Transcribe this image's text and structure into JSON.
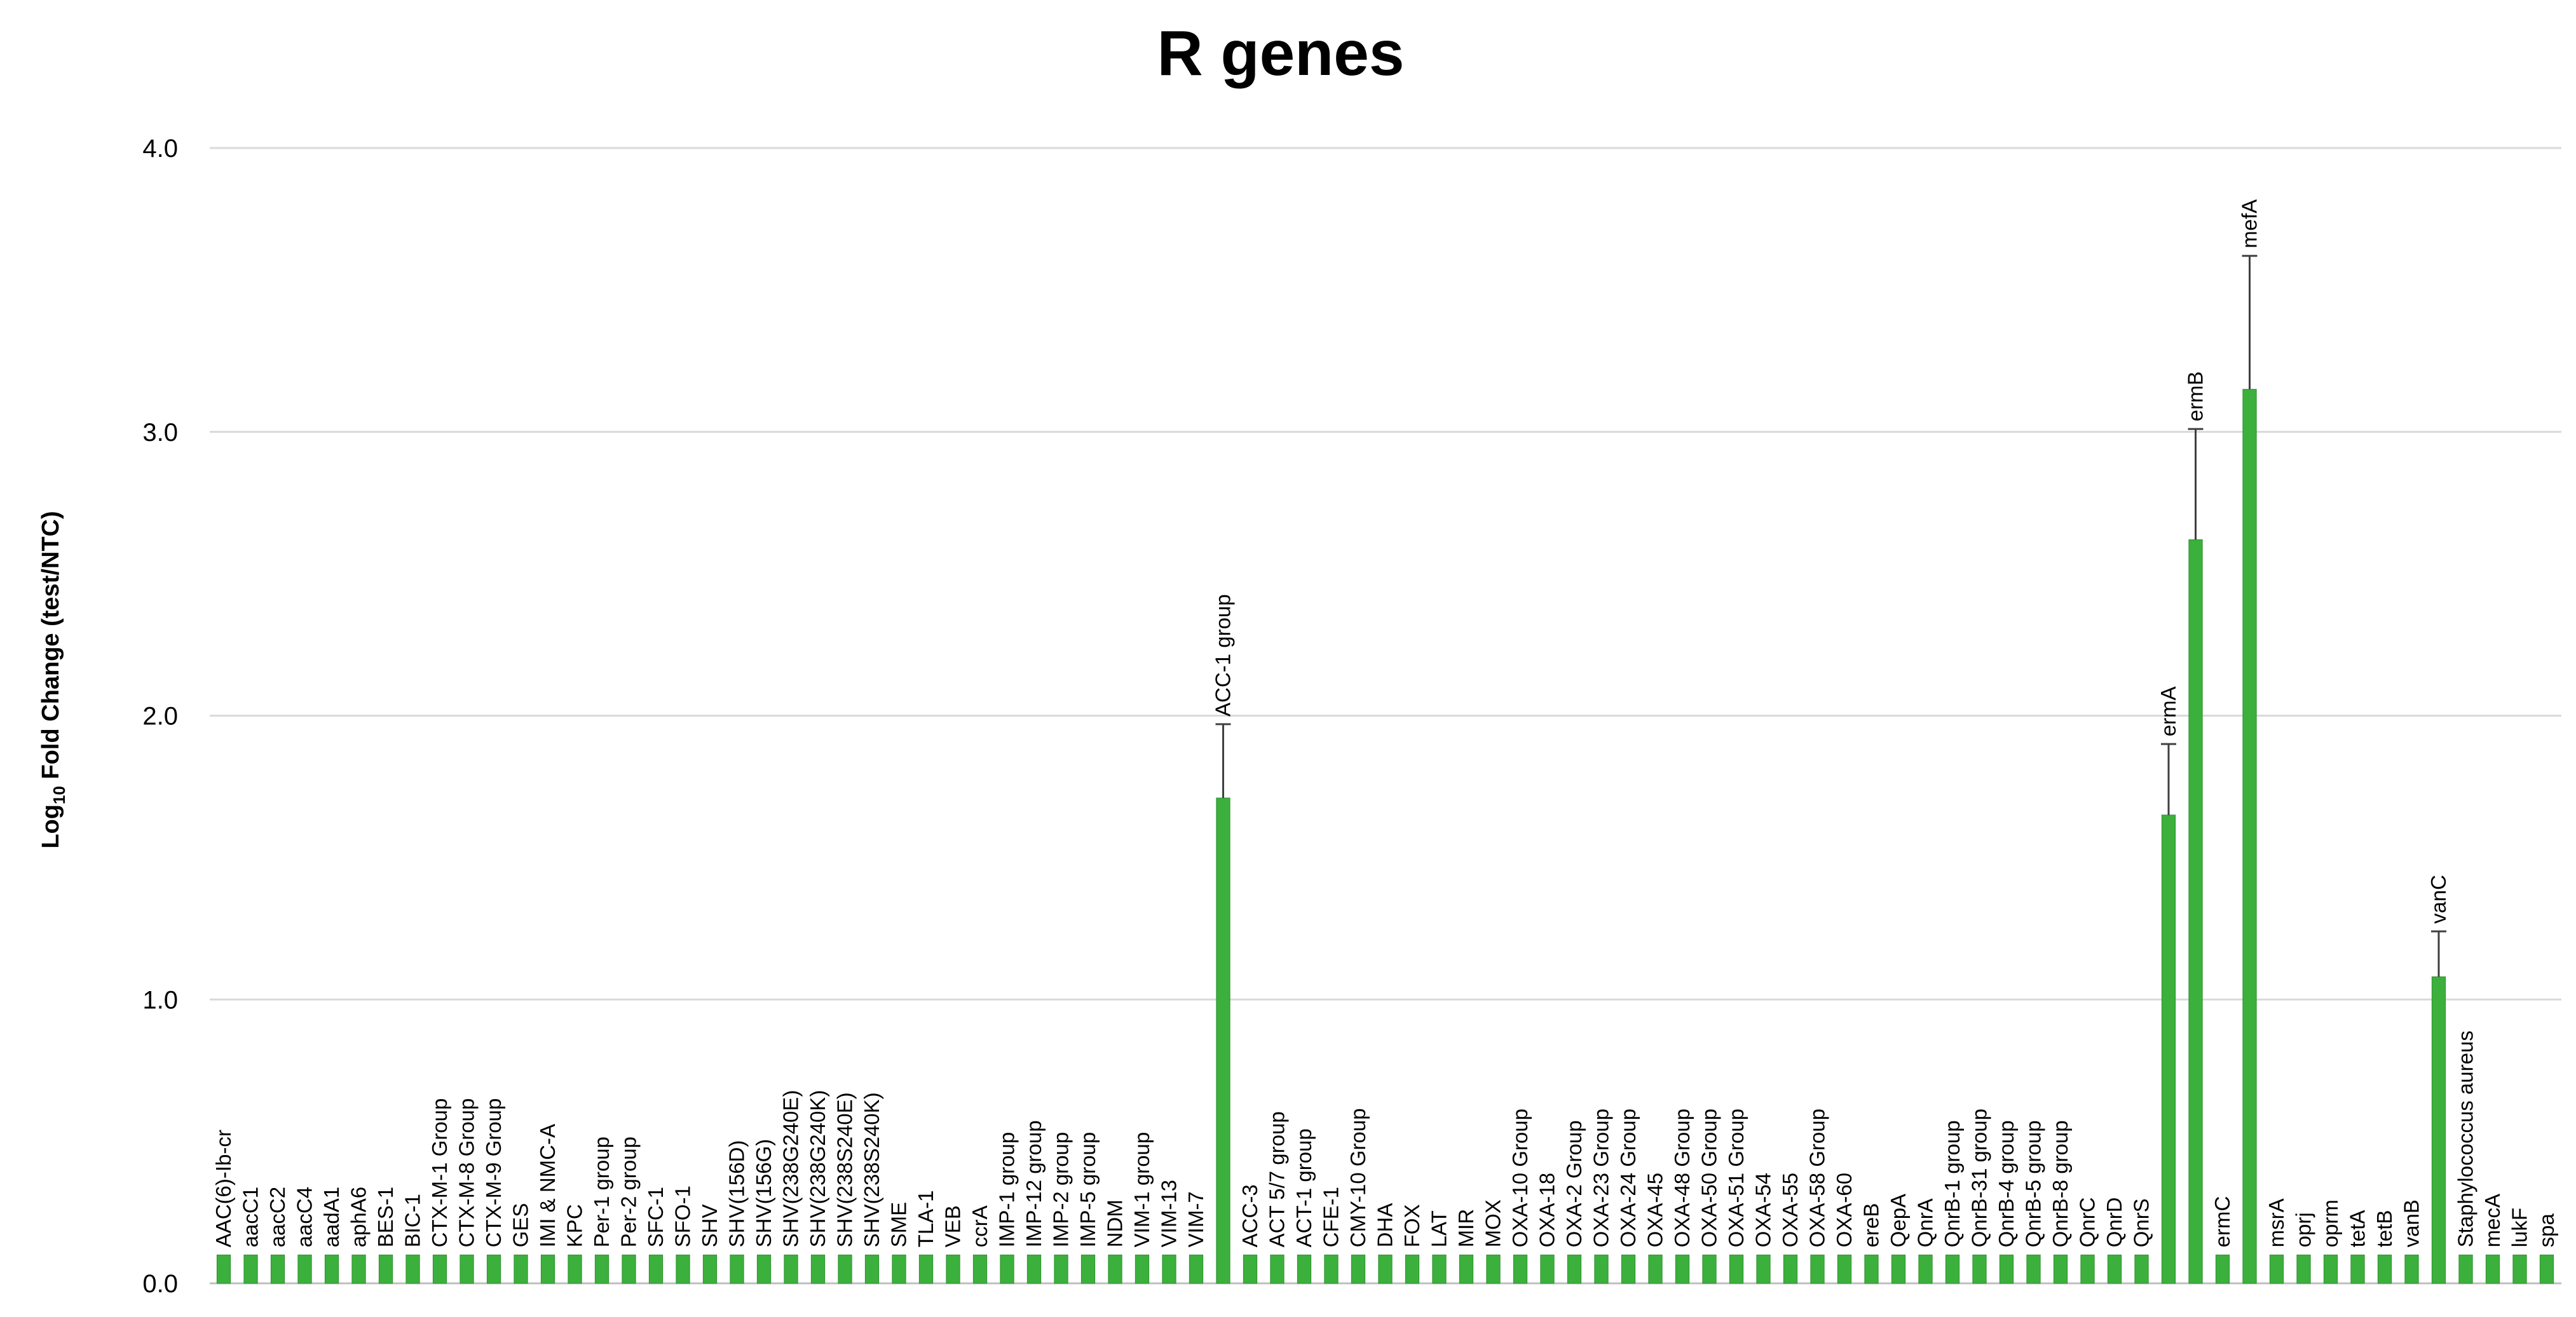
{
  "chart_data": {
    "type": "bar",
    "title": "R genes",
    "ylabel_main": "Log",
    "ylabel_sub": "10",
    "ylabel_rest": " Fold Change (test/NTC)",
    "xlabel": "",
    "ylim": [
      0,
      4
    ],
    "yticks": [
      "0.0",
      "1.0",
      "2.0",
      "3.0",
      "4.0"
    ],
    "grid": true,
    "colors": {
      "bar": "#3cb03c",
      "bar_edge": "#2e8f2e",
      "grid": "#d9d9d9",
      "axis": "#bfbfbf",
      "error": "#404040"
    },
    "categories": [
      "AAC(6)-Ib-cr",
      "aacC1",
      "aacC2",
      "aacC4",
      "aadA1",
      "aphA6",
      "BES-1",
      "BIC-1",
      "CTX-M-1 Group",
      "CTX-M-8 Group",
      "CTX-M-9 Group",
      "GES",
      "IMI & NMC-A",
      "KPC",
      "Per-1 group",
      "Per-2 group",
      "SFC-1",
      "SFO-1",
      "SHV",
      "SHV(156D)",
      "SHV(156G)",
      "SHV(238G240E)",
      "SHV(238G240K)",
      "SHV(238S240E)",
      "SHV(238S240K)",
      "SME",
      "TLA-1",
      "VEB",
      "ccrA",
      "IMP-1 group",
      "IMP-12 group",
      "IMP-2 group",
      "IMP-5 group",
      "NDM",
      "VIM-1 group",
      "VIM-13",
      "VIM-7",
      "ACC-1 group",
      "ACC-3",
      "ACT 5/7 group",
      "ACT-1 group",
      "CFE-1",
      "CMY-10 Group",
      "DHA",
      "FOX",
      "LAT",
      "MIR",
      "MOX",
      "OXA-10 Group",
      "OXA-18",
      "OXA-2 Group",
      "OXA-23 Group",
      "OXA-24 Group",
      "OXA-45",
      "OXA-48 Group",
      "OXA-50 Group",
      "OXA-51 Group",
      "OXA-54",
      "OXA-55",
      "OXA-58 Group",
      "OXA-60",
      "ereB",
      "QepA",
      "QnrA",
      "QnrB-1 group",
      "QnrB-31 group",
      "QnrB-4 group",
      "QnrB-5 group",
      "QnrB-8 group",
      "QnrC",
      "QnrD",
      "QnrS",
      "ermA",
      "ermB",
      "ermC",
      "mefA",
      "msrA",
      "oprj",
      "oprm",
      "tetA",
      "tetB",
      "vanB",
      "vanC",
      "Staphylococcus aureus",
      "mecA",
      "lukF",
      "spa"
    ],
    "values": [
      0.1,
      0.1,
      0.1,
      0.1,
      0.1,
      0.1,
      0.1,
      0.1,
      0.1,
      0.1,
      0.1,
      0.1,
      0.1,
      0.1,
      0.1,
      0.1,
      0.1,
      0.1,
      0.1,
      0.1,
      0.1,
      0.1,
      0.1,
      0.1,
      0.1,
      0.1,
      0.1,
      0.1,
      0.1,
      0.1,
      0.1,
      0.1,
      0.1,
      0.1,
      0.1,
      0.1,
      0.1,
      1.71,
      0.1,
      0.1,
      0.1,
      0.1,
      0.1,
      0.1,
      0.1,
      0.1,
      0.1,
      0.1,
      0.1,
      0.1,
      0.1,
      0.1,
      0.1,
      0.1,
      0.1,
      0.1,
      0.1,
      0.1,
      0.1,
      0.1,
      0.1,
      0.1,
      0.1,
      0.1,
      0.1,
      0.1,
      0.1,
      0.1,
      0.1,
      0.1,
      0.1,
      0.1,
      1.65,
      2.62,
      0.1,
      3.15,
      0.1,
      0.1,
      0.1,
      0.1,
      0.1,
      0.1,
      1.08,
      0.1,
      0.1,
      0.1,
      0.1
    ],
    "errors": [
      0,
      0,
      0,
      0,
      0,
      0,
      0,
      0,
      0,
      0,
      0,
      0,
      0,
      0,
      0,
      0,
      0,
      0,
      0,
      0,
      0,
      0,
      0,
      0,
      0,
      0,
      0,
      0,
      0,
      0,
      0,
      0,
      0,
      0,
      0,
      0,
      0,
      0.26,
      0,
      0,
      0,
      0,
      0,
      0,
      0,
      0,
      0,
      0,
      0,
      0,
      0,
      0,
      0,
      0,
      0,
      0,
      0,
      0,
      0,
      0,
      0,
      0,
      0,
      0,
      0,
      0,
      0,
      0,
      0,
      0,
      0,
      0,
      0.25,
      0.39,
      0,
      0.47,
      0,
      0,
      0,
      0,
      0,
      0,
      0.16,
      0,
      0,
      0,
      0
    ]
  }
}
